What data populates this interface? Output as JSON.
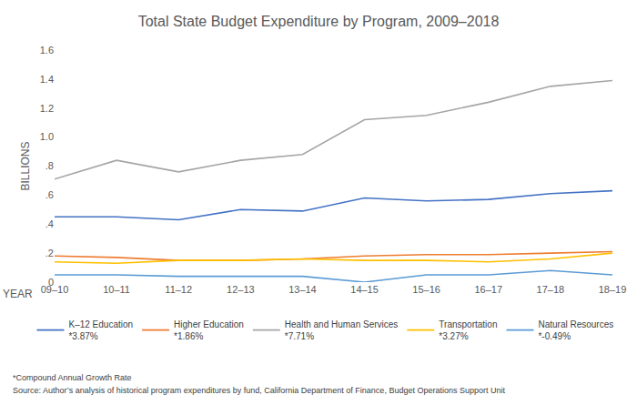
{
  "chart_data": {
    "type": "line",
    "title": "Total State Budget Expenditure by Program, 2009–2018",
    "x_label": "YEAR",
    "y_label": "BILLIONS",
    "categories": [
      "09–10",
      "10–11",
      "11–12",
      "12–13",
      "13–14",
      "14–15",
      "15–16",
      "16–17",
      "17–18",
      "18–19"
    ],
    "series": [
      {
        "name": "K–12 Education\n*3.87%",
        "color": "#4472c4",
        "values": [
          0.45,
          0.45,
          0.43,
          0.5,
          0.49,
          0.58,
          0.56,
          0.57,
          0.61,
          0.63
        ]
      },
      {
        "name": "Higher Education\n*1.86%",
        "color": "#ed7d31",
        "values": [
          0.18,
          0.17,
          0.15,
          0.15,
          0.16,
          0.18,
          0.19,
          0.19,
          0.2,
          0.21
        ]
      },
      {
        "name": "Health and Human Services\n*7.71%",
        "color": "#a5a5a5",
        "values": [
          0.71,
          0.84,
          0.76,
          0.84,
          0.88,
          1.12,
          1.15,
          1.24,
          1.35,
          1.39
        ]
      },
      {
        "name": "Transportation\n*3.27%",
        "color": "#ffc000",
        "values": [
          0.14,
          0.13,
          0.15,
          0.15,
          0.16,
          0.15,
          0.15,
          0.14,
          0.16,
          0.2
        ]
      },
      {
        "name": "Natural Resources\n*-0.49%",
        "color": "#5b9bd5",
        "values": [
          0.05,
          0.05,
          0.04,
          0.04,
          0.04,
          0.0,
          0.05,
          0.05,
          0.08,
          0.05
        ]
      }
    ],
    "ylim": [
      0,
      1.6
    ],
    "yticks": [
      0,
      {
        "value": 0.2,
        "label": ".2"
      },
      {
        "value": 0.4,
        "label": ".4"
      },
      {
        "value": 0.6,
        "label": ".6"
      },
      {
        "value": 0.8,
        "label": ".8"
      },
      {
        "value": 1.0,
        "label": "1.0"
      },
      1.2,
      1.4,
      1.6
    ],
    "grid": false,
    "legend": "bottom",
    "notes": [
      "*Compound Annual Growth Rate",
      "Source: Author’s analysis of historical program expenditures by fund, California Department of Finance, Budget Operations Support Unit"
    ]
  }
}
